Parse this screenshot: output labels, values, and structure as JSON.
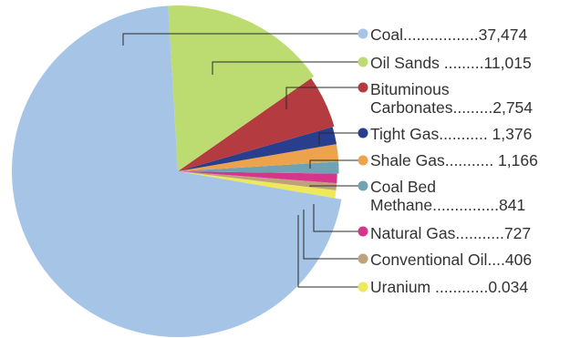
{
  "chart_data": {
    "type": "pie",
    "title": "",
    "slices": [
      {
        "label": "Coal",
        "value": 37474,
        "display_value": "37,474",
        "color": "#a6c4e6",
        "leader": "Coal.................37,474"
      },
      {
        "label": "Oil Sands",
        "value": 11015,
        "display_value": "11,015",
        "color": "#bcdc71",
        "leader": "Oil Sands .........11,015"
      },
      {
        "label": "Bituminous Carbonates",
        "value": 2754,
        "display_value": "2,754",
        "color": "#b43b40",
        "leader_line1": "Bituminous",
        "leader_line2": "Carbonates.........2,754"
      },
      {
        "label": "Tight Gas",
        "value": 1376,
        "display_value": "1,376",
        "color": "#293e8c",
        "leader": "Tight Gas........... 1,376"
      },
      {
        "label": "Shale Gas",
        "value": 1166,
        "display_value": "1,166",
        "color": "#eda24c",
        "leader": "Shale Gas........... 1,166"
      },
      {
        "label": "Coal Bed Methane",
        "value": 841,
        "display_value": "841",
        "color": "#6fa3b3",
        "leader_line1": "Coal Bed",
        "leader_line2": "Methane...............841"
      },
      {
        "label": "Natural Gas",
        "value": 727,
        "display_value": "727",
        "color": "#d6358c",
        "leader": "Natural Gas...........727"
      },
      {
        "label": "Conventional Oil",
        "value": 406,
        "display_value": "406",
        "color": "#bfa27a",
        "leader": "Conventional Oil....406"
      },
      {
        "label": "Uranium",
        "value": 0.034,
        "display_value": "0.034",
        "color": "#eee95a",
        "leader": "Uranium ............0.034"
      }
    ]
  }
}
